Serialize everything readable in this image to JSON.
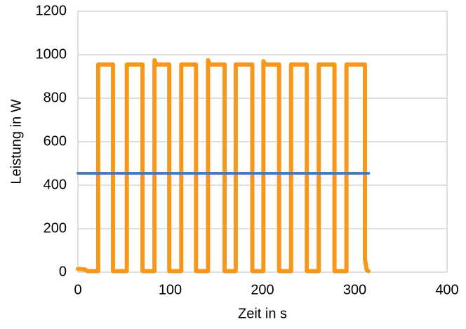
{
  "chart_data": {
    "type": "line",
    "x_label": "Zeit in s",
    "y_label": "Leistung in W",
    "xlim": [
      0,
      400
    ],
    "xticks": [
      0,
      100,
      200,
      300,
      400
    ],
    "ylim": [
      0,
      1200
    ],
    "yticks": [
      0,
      200,
      400,
      600,
      800,
      1000,
      1200
    ],
    "grid": true,
    "series": [
      {
        "color": "#f7981d",
        "x": [
          0,
          8,
          10,
          22,
          22,
          38,
          38,
          53,
          53,
          70,
          70,
          83,
          83,
          85,
          99,
          99,
          112,
          112,
          128,
          128,
          141,
          141,
          143,
          159,
          159,
          171,
          171,
          189,
          189,
          201,
          201,
          203,
          218,
          218,
          231,
          231,
          248,
          248,
          261,
          261,
          278,
          278,
          291,
          291,
          311,
          311,
          313,
          315
        ],
        "values": [
          15,
          12,
          5,
          5,
          955,
          955,
          5,
          5,
          955,
          955,
          5,
          5,
          975,
          955,
          955,
          5,
          5,
          955,
          955,
          5,
          5,
          975,
          955,
          955,
          5,
          5,
          955,
          955,
          5,
          5,
          970,
          955,
          955,
          5,
          5,
          955,
          955,
          5,
          5,
          955,
          955,
          5,
          5,
          955,
          955,
          60,
          10,
          5
        ]
      },
      {
        "color": "#4a78b4",
        "x": [
          0,
          315
        ],
        "values": [
          455,
          455
        ]
      }
    ]
  }
}
